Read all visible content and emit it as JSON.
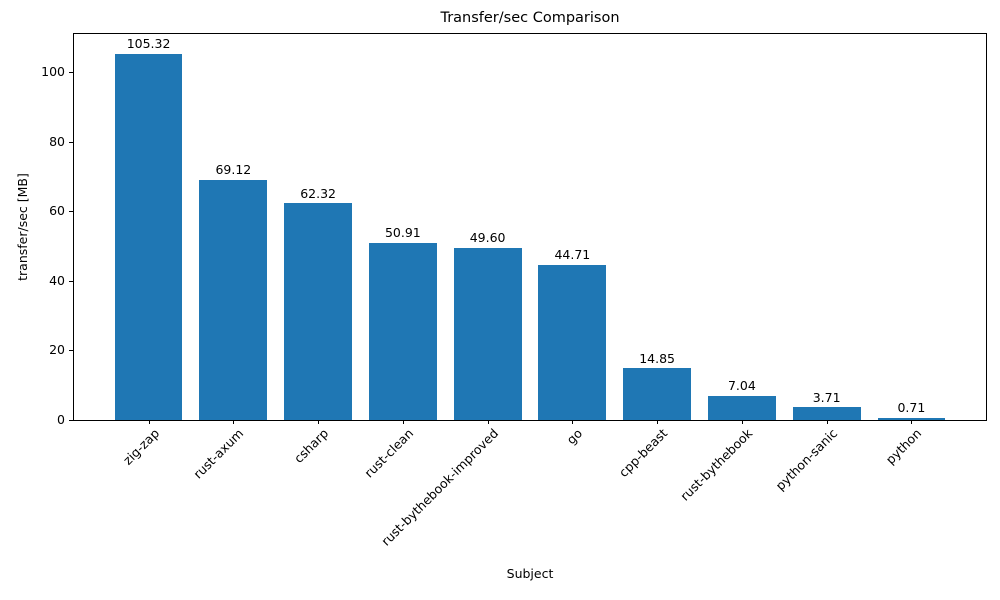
{
  "figure": {
    "background": "#ffffff",
    "text_color": "#000000",
    "spine_color": "#000000"
  },
  "chart_data": {
    "type": "bar",
    "title": "Transfer/sec Comparison",
    "xlabel": "Subject",
    "ylabel": "transfer/sec [MB]",
    "categories": [
      "zig-zap",
      "rust-axum",
      "csharp",
      "rust-clean",
      "rust-bythebook-improved",
      "go",
      "cpp-beast",
      "rust-bythebook",
      "python-sanic",
      "python"
    ],
    "values": [
      105.32,
      69.12,
      62.32,
      50.91,
      49.6,
      44.71,
      14.85,
      7.04,
      3.71,
      0.71
    ],
    "bar_labels": [
      "105.32",
      "69.12",
      "62.32",
      "50.91",
      "49.60",
      "44.71",
      "14.85",
      "7.04",
      "3.71",
      "0.71"
    ],
    "yticks": [
      0,
      20,
      40,
      60,
      80,
      100
    ],
    "ytick_labels": [
      "0",
      "20",
      "40",
      "60",
      "80",
      "100"
    ],
    "ylim": [
      0,
      111
    ],
    "bar_color": "#1f77b4",
    "bar_width_fraction": 0.8,
    "x_tick_rotation_deg": 45,
    "grid": false,
    "legend": "none"
  }
}
